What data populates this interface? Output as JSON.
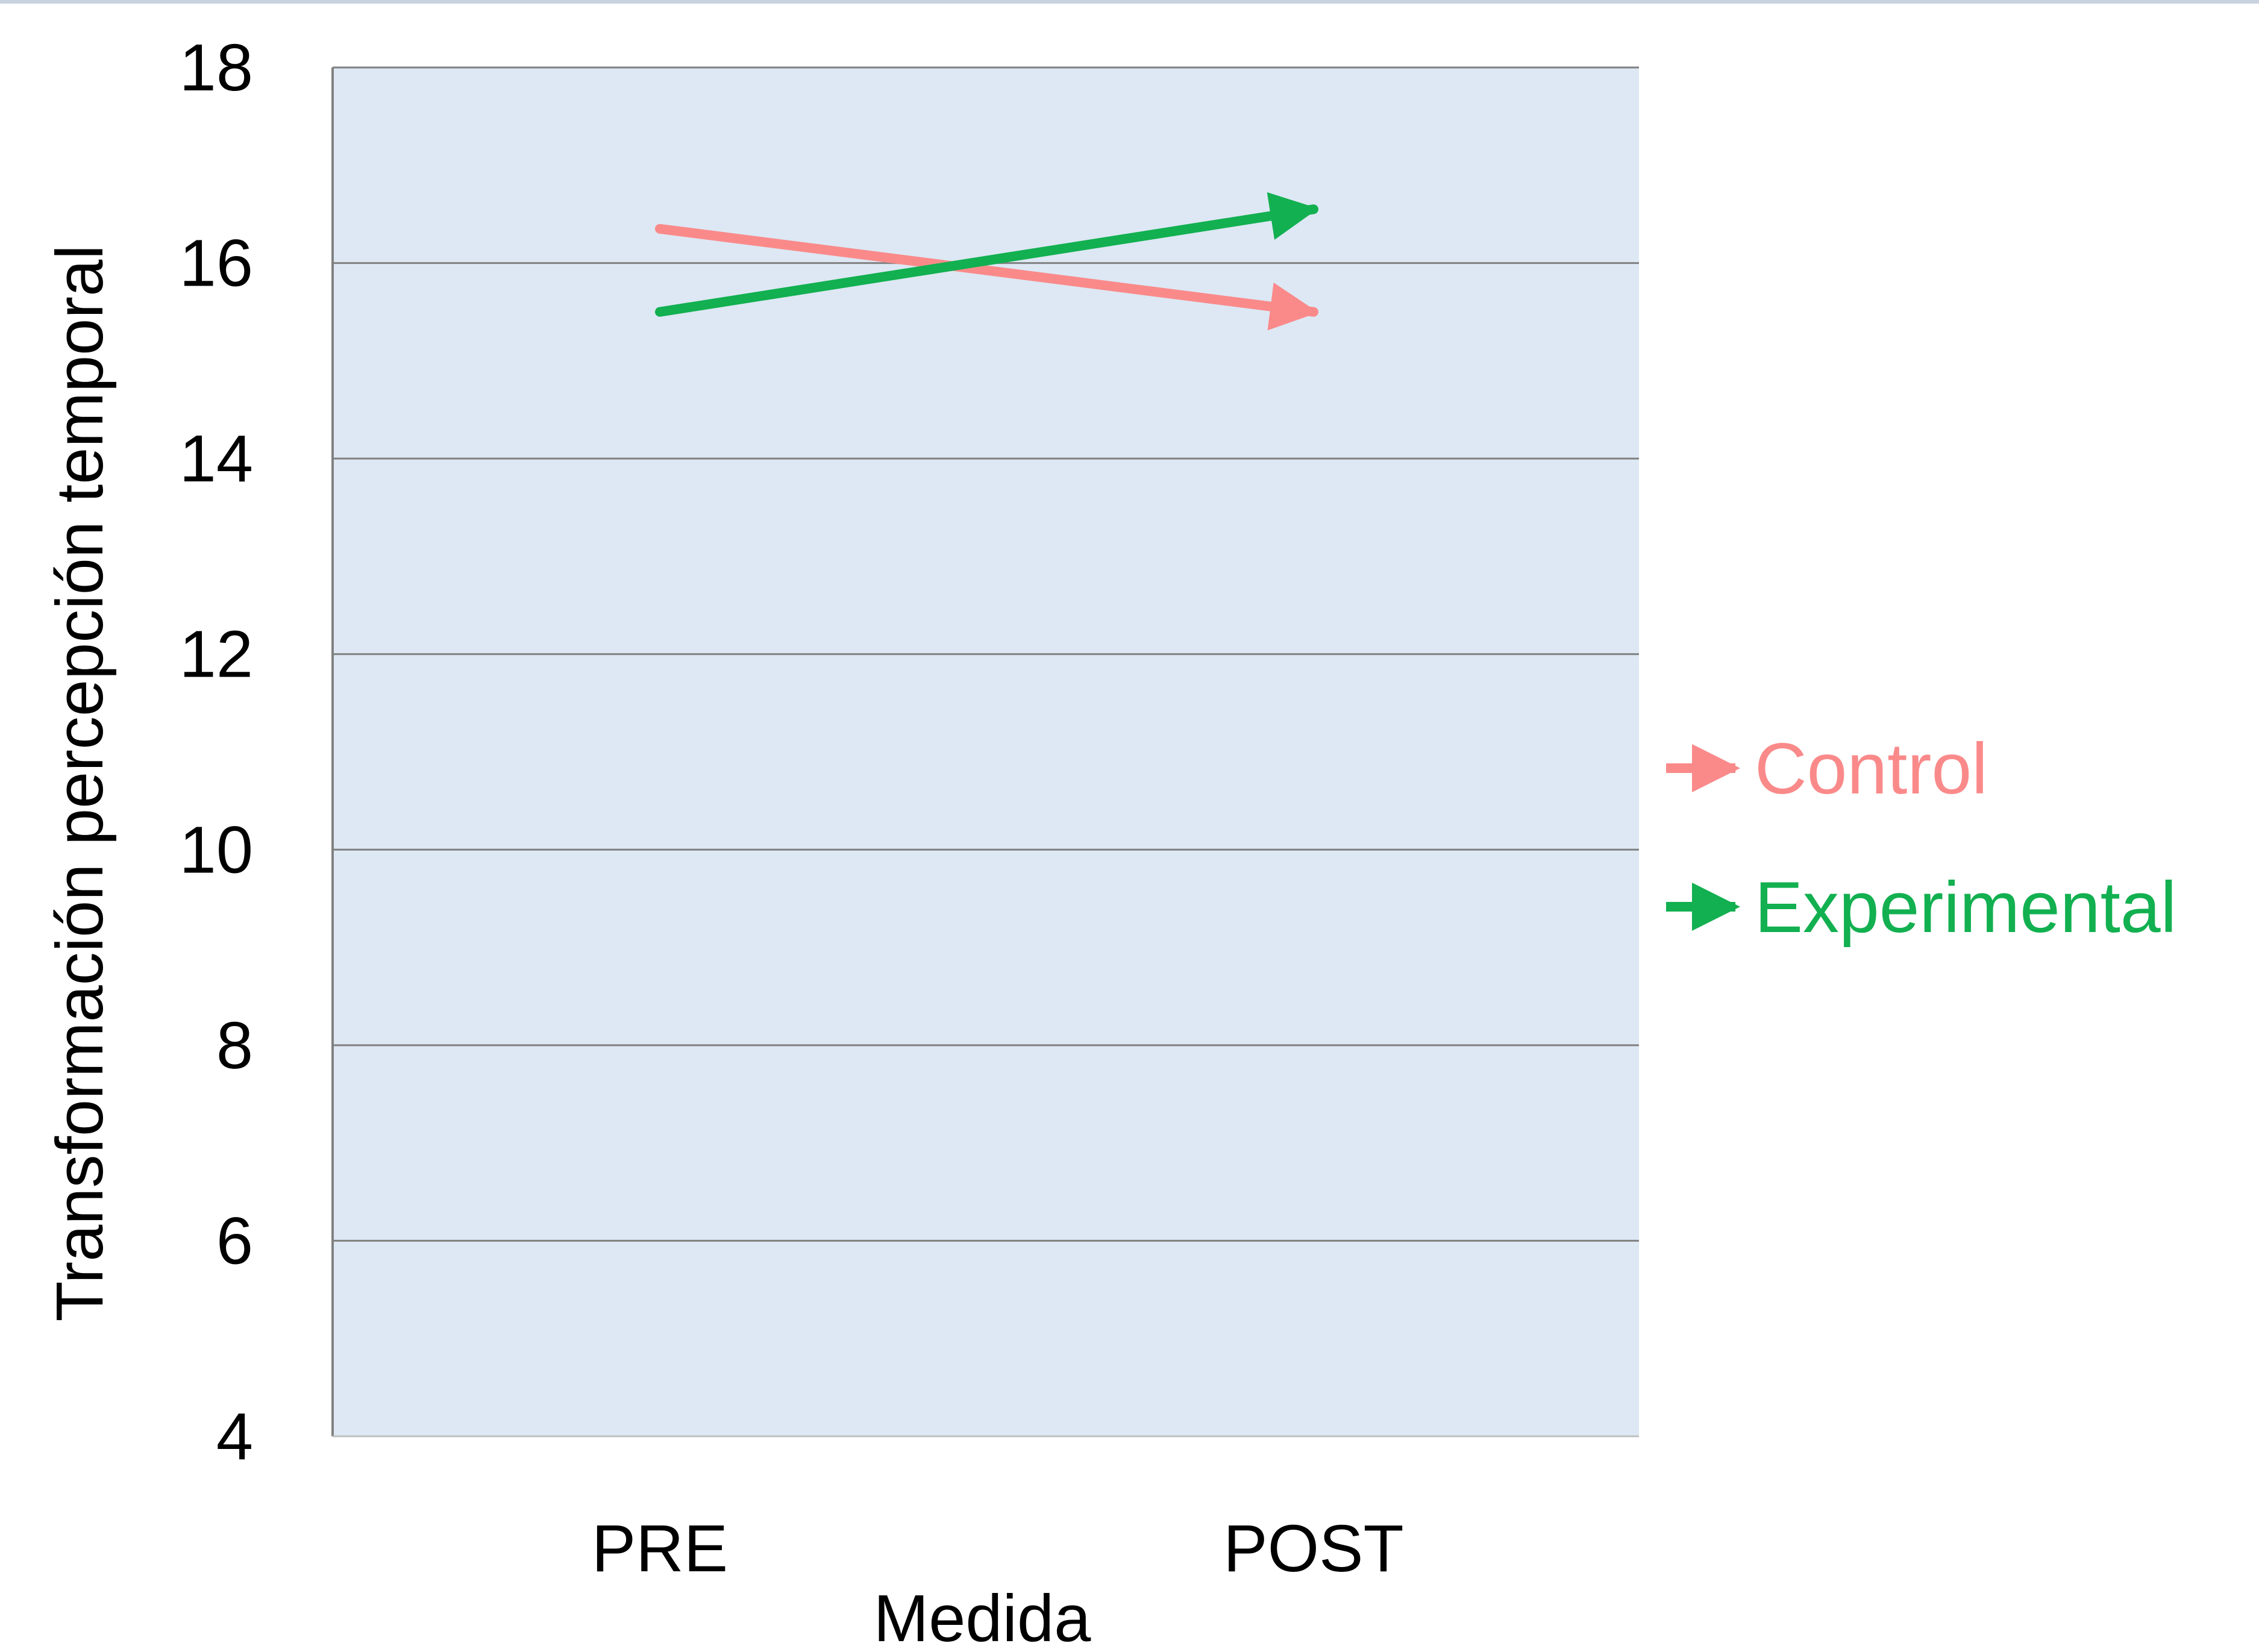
{
  "chart_data": {
    "type": "line",
    "title": "",
    "xlabel": "Medida",
    "ylabel": "Transformación percepción temporal",
    "categories": [
      "PRE",
      "POST"
    ],
    "ylim": [
      4,
      18
    ],
    "yticks": [
      "4",
      "6",
      "8",
      "10",
      "12",
      "14",
      "16",
      "18"
    ],
    "grid": true,
    "legend_position": "right",
    "plot_background": "#dde8f4",
    "series": [
      {
        "name": "Control",
        "values": [
          16.35,
          15.5
        ],
        "color": "#fa8a8a"
      },
      {
        "name": "Experimental",
        "values": [
          15.5,
          16.55
        ],
        "color": "#12b050"
      }
    ]
  }
}
